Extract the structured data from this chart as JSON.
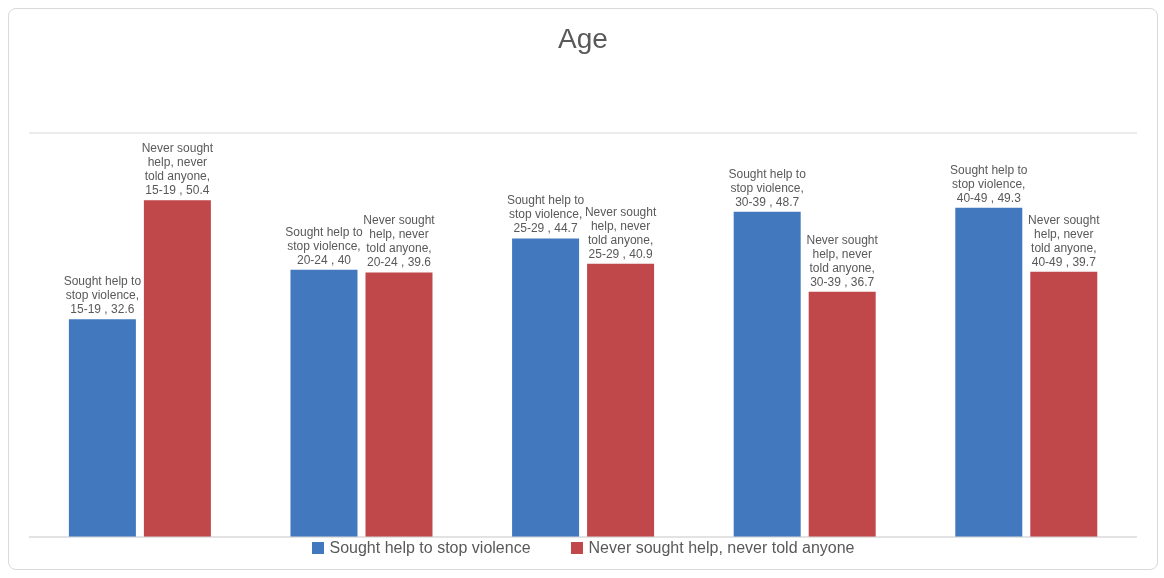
{
  "chart_data": {
    "type": "bar",
    "title": "Age",
    "categories": [
      null,
      null,
      null,
      null,
      null
    ],
    "series": [
      {
        "name": "Sought help to stop violence",
        "color": "#4178be",
        "values": [
          32.6,
          40,
          44.7,
          48.7,
          49.3
        ],
        "value_labels": [
          "Sought help to stop violence, 15-19 , 32.6",
          "Sought help to stop violence, 20-24 , 40",
          "Sought help to stop violence, 25-29 , 44.7",
          "Sought help to stop violence, 30-39 , 48.7",
          "Sought help to stop violence, 40-49 , 49.3"
        ]
      },
      {
        "name": "Never sought help, never told anyone",
        "color": "#c0474a",
        "values": [
          50.4,
          39.6,
          40.9,
          36.7,
          39.7
        ],
        "value_labels": [
          "Never sought help, never told anyone, 15-19 , 50.4",
          "Never sought help, never told anyone, 20-24 , 39.6",
          "Never sought help, never told anyone, 25-29 , 40.9",
          "Never sought help, never told anyone, 30-39 , 36.7",
          "Never sought help, never told anyone, 40-49 , 39.7"
        ]
      }
    ],
    "grid": "y",
    "legend": "bottom"
  }
}
